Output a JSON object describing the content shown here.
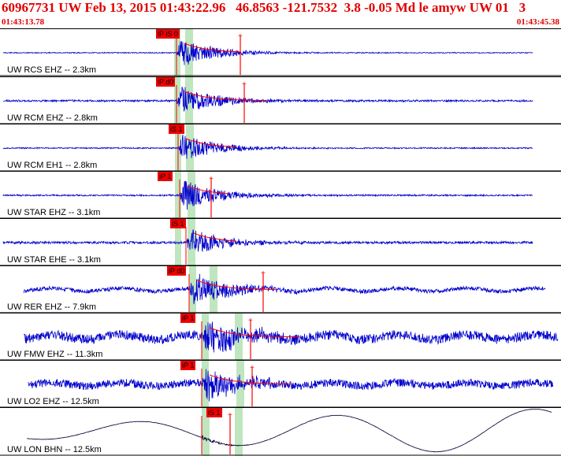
{
  "header": {
    "title": "60967731 UW Feb 13, 2015 01:43:22.96   46.8563 -121.7532  3.8 -0.05 Md le amyw UW 01   3",
    "start_time": "01:43:13.78",
    "end_time": "01:43:45.38"
  },
  "colors": {
    "header_text": "#e00000",
    "trace": "#0000cc",
    "trace_broadband": "#000033",
    "pick_flag": "#ee0000",
    "window_band": "#bfe6bf",
    "coda_line": "#ff0000",
    "baseline": "#000000"
  },
  "channels": [
    {
      "label": "UW RCS EHZ -- 2.3km",
      "pick": "iP iS 0",
      "seed": 11
    },
    {
      "label": "UW RCM EHZ -- 2.8km",
      "pick": "iP d0",
      "seed": 23
    },
    {
      "label": "UW RCM EH1 -- 2.8km",
      "pick": "iS 1",
      "seed": 37
    },
    {
      "label": "UW STAR EHZ -- 3.1km",
      "pick": "iP 1",
      "seed": 41
    },
    {
      "label": "UW STAR EHE -- 3.1km",
      "pick": "iS 1",
      "seed": 53
    },
    {
      "label": "UW RER EHZ -- 7.9km",
      "pick": "iP d0",
      "seed": 67
    },
    {
      "label": "UW FMW EHZ -- 11.3km",
      "pick": "iP 1",
      "seed": 71
    },
    {
      "label": "UW LO2 EHZ -- 12.5km",
      "pick": "iP 1",
      "seed": 83
    },
    {
      "label": "UW LON BHN -- 12.5km",
      "pick": "iS 1",
      "seed": 97
    }
  ]
}
